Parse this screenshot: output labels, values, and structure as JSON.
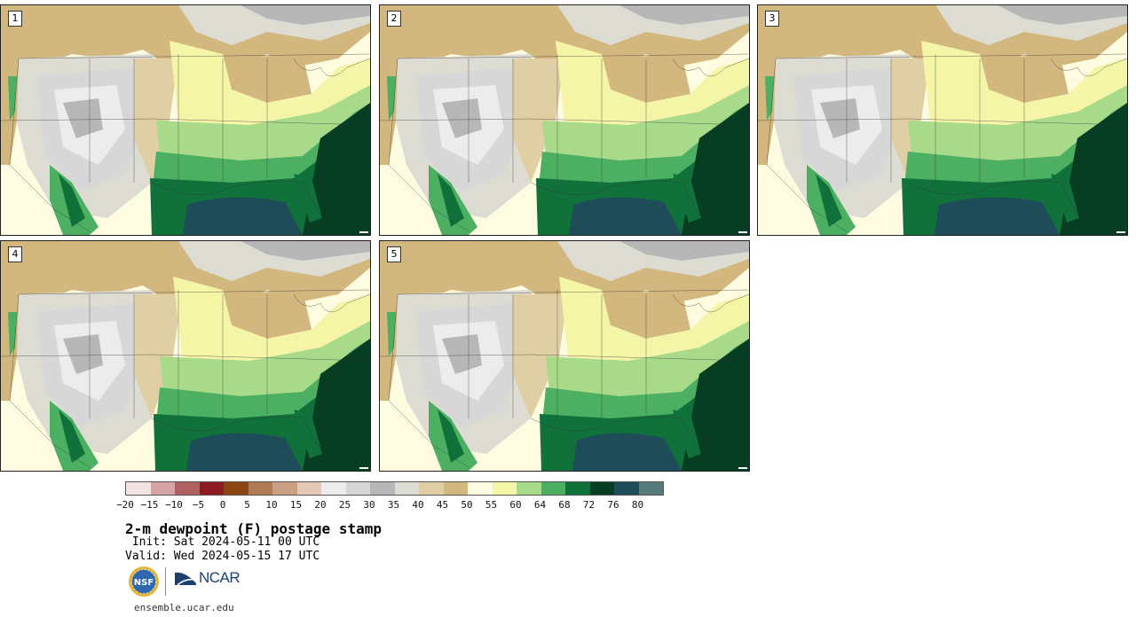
{
  "panels": [
    {
      "label": "1"
    },
    {
      "label": "2"
    },
    {
      "label": "3"
    },
    {
      "label": "4"
    },
    {
      "label": "5"
    }
  ],
  "colorbar": {
    "colors": [
      "#f4e3e3",
      "#d6a3a6",
      "#b06060",
      "#8e1a24",
      "#8b4513",
      "#b07a55",
      "#c9a083",
      "#e3c8b5",
      "#ececec",
      "#d7d7d7",
      "#b7b7b7",
      "#dcdcd2",
      "#e0cfa4",
      "#d2b77e",
      "#fdfbe0",
      "#f5f5a8",
      "#a8da8a",
      "#4caf62",
      "#11713a",
      "#063d23",
      "#1e4c58",
      "#56797a"
    ],
    "ticks": [
      "−20",
      "−15",
      "−10",
      "−5",
      "0",
      "5",
      "10",
      "15",
      "20",
      "25",
      "30",
      "35",
      "40",
      "45",
      "50",
      "55",
      "60",
      "64",
      "68",
      "72",
      "76",
      "80"
    ]
  },
  "title": "2-m dewpoint (F) postage stamp",
  "init": " Init: Sat 2024-05-11 00 UTC",
  "valid": "Valid: Wed 2024-05-15 17 UTC",
  "logos": {
    "nsf_text": "NSF",
    "ncar_text": "NCAR"
  },
  "website": "ensemble.ucar.edu"
}
